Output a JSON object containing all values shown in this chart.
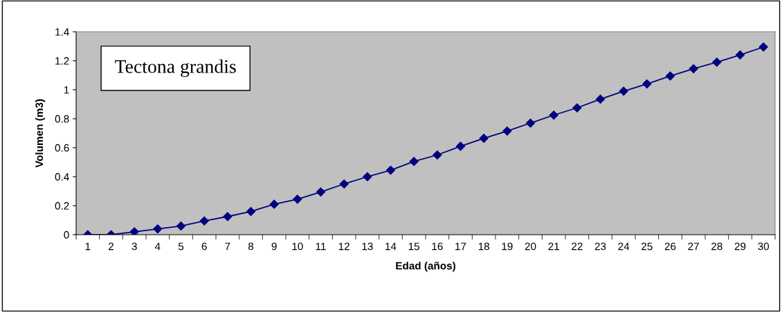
{
  "chart_data": {
    "type": "line",
    "xlabel": "Edad (años)",
    "ylabel": "Volumen (m3)",
    "annotations": [
      "Tectona grandis"
    ],
    "categories": [
      "1",
      "2",
      "3",
      "4",
      "5",
      "6",
      "7",
      "8",
      "9",
      "10",
      "11",
      "12",
      "13",
      "14",
      "15",
      "16",
      "17",
      "18",
      "19",
      "20",
      "21",
      "22",
      "23",
      "24",
      "25",
      "26",
      "27",
      "28",
      "29",
      "30"
    ],
    "series": [
      {
        "color": "#000080",
        "values": [
          0,
          0,
          0.02,
          0.04,
          0.06,
          0.095,
          0.125,
          0.16,
          0.21,
          0.245,
          0.295,
          0.35,
          0.4,
          0.445,
          0.505,
          0.55,
          0.61,
          0.665,
          0.715,
          0.77,
          0.825,
          0.875,
          0.935,
          0.99,
          1.04,
          1.095,
          1.145,
          1.19,
          1.24,
          1.295
        ]
      }
    ],
    "ylim": [
      0,
      1.4
    ],
    "yticks": [
      0,
      {
        "value": 0.2,
        "label": "0.2"
      },
      {
        "value": 0.4,
        "label": "0.4"
      },
      {
        "value": 0.6,
        "label": "0.6"
      },
      {
        "value": 0.8,
        "label": "0.8"
      },
      1,
      {
        "value": 1.2,
        "label": "1.2"
      },
      {
        "value": 1.4,
        "label": "1.4"
      }
    ],
    "grid": false,
    "legend": false,
    "marker": "diamond",
    "line_style": "solid"
  }
}
